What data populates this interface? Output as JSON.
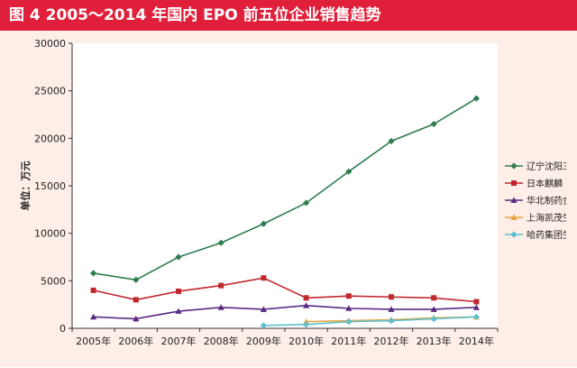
{
  "figure": {
    "title": "图 4  2005～2014 年国内 EPO 前五位企业销售趋势"
  },
  "colors": {
    "title_bg": "#e0203a",
    "background": "#fdeee8"
  },
  "chart_data": {
    "type": "line",
    "title": "图 4  2005～2014 年国内 EPO 前五位企业销售趋势",
    "xlabel": "",
    "ylabel": "单位：万元",
    "ylim": [
      0,
      30000
    ],
    "yticks": [
      0,
      5000,
      10000,
      15000,
      20000,
      25000,
      30000
    ],
    "categories": [
      "2005年",
      "2006年",
      "2007年",
      "2008年",
      "2009年",
      "2010年",
      "2011年",
      "2012年",
      "2013年",
      "2014年"
    ],
    "legend_position": "right",
    "grid": false,
    "series": [
      {
        "name": "辽宁沈阳三生",
        "color": "#2e7d4f",
        "marker": "diamond",
        "values": [
          5800,
          5100,
          7500,
          9000,
          11000,
          13200,
          16500,
          19700,
          21500,
          24200
        ]
      },
      {
        "name": "日本麒麟",
        "color": "#c0282d",
        "marker": "square",
        "values": [
          4000,
          3000,
          3900,
          4500,
          5300,
          3200,
          3400,
          3300,
          3200,
          2800
        ]
      },
      {
        "name": "华北制药金坦",
        "color": "#5a2a82",
        "marker": "triangle",
        "values": [
          1200,
          1000,
          1800,
          2200,
          2000,
          2400,
          2100,
          2000,
          2000,
          2200
        ]
      },
      {
        "name": "上海凯茂生物",
        "color": "#e8a33a",
        "marker": "triangle",
        "values": [
          null,
          null,
          null,
          null,
          null,
          700,
          800,
          900,
          1100,
          1200
        ]
      },
      {
        "name": "哈药集团生物",
        "color": "#5bbfd0",
        "marker": "diamond",
        "values": [
          null,
          null,
          null,
          null,
          300,
          400,
          700,
          800,
          1000,
          1200
        ]
      }
    ]
  }
}
